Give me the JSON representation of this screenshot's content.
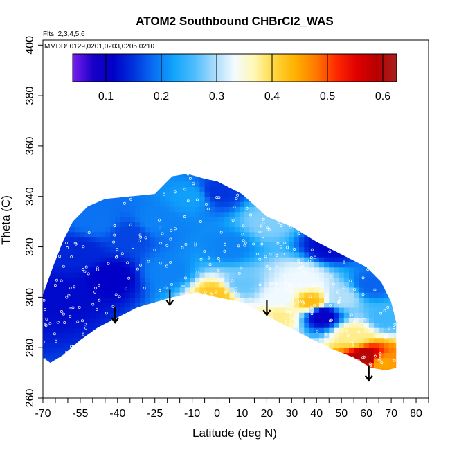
{
  "chart_data": {
    "type": "heatmap",
    "title": "ATOM2 Southbound CHBrCl2_WAS",
    "annotations": {
      "flights": "Flts: 2,3,4,5,6",
      "dates": "MMDD: 0129,0201,0203,0205,0210"
    },
    "xlabel": "Latitude (deg N)",
    "ylabel": "Theta (C)",
    "xlim": [
      -70,
      85
    ],
    "ylim": [
      260,
      402
    ],
    "x_tick_labels": [
      "-70",
      "-55",
      "-40",
      "-25",
      "-10",
      "0",
      "10",
      "20",
      "30",
      "40",
      "50",
      "60",
      "70",
      "80"
    ],
    "x_tick_values": [
      -70,
      -55,
      -40,
      -25,
      -10,
      0,
      10,
      20,
      30,
      40,
      50,
      60,
      70,
      80
    ],
    "x_minor_ticks": [
      -65,
      -60,
      -50,
      -45,
      -35,
      -30,
      -20,
      -15,
      -5,
      5,
      15,
      25,
      35,
      45,
      55,
      65,
      75,
      85
    ],
    "y_tick_labels": [
      "260",
      "280",
      "300",
      "320",
      "340",
      "360",
      "380",
      "400"
    ],
    "y_tick_values": [
      260,
      280,
      300,
      320,
      340,
      360,
      380,
      400
    ],
    "colorbar": {
      "range": [
        0.04,
        0.625
      ],
      "tick_labels": [
        "0.1",
        "0.2",
        "0.3",
        "0.4",
        "0.5",
        "0.6"
      ],
      "tick_values": [
        0.1,
        0.2,
        0.3,
        0.4,
        0.5,
        0.6
      ],
      "colors": [
        "#7a1ff0",
        "#1a00c8",
        "#0000c8",
        "#0033dd",
        "#0a6ef2",
        "#11a5fc",
        "#4cbcfd",
        "#a8dcfb",
        "#f4fbff",
        "#fff7b0",
        "#ffd53a",
        "#ffb000",
        "#ff7a00",
        "#ff2a00",
        "#e00000",
        "#b80000",
        "#a82020"
      ]
    },
    "envelope_upper": [
      [
        -70,
        301
      ],
      [
        -66,
        312
      ],
      [
        -62,
        322
      ],
      [
        -58,
        330
      ],
      [
        -52,
        336
      ],
      [
        -45,
        339
      ],
      [
        -35,
        340
      ],
      [
        -25,
        341
      ],
      [
        -18,
        348
      ],
      [
        -12,
        349
      ],
      [
        -5,
        347
      ],
      [
        0,
        346
      ],
      [
        10,
        341
      ],
      [
        20,
        332
      ],
      [
        30,
        328
      ],
      [
        40,
        322
      ],
      [
        50,
        317
      ],
      [
        60,
        312
      ],
      [
        66,
        306
      ],
      [
        70,
        298
      ],
      [
        72,
        290
      ],
      [
        72,
        272
      ]
    ],
    "envelope_lower": [
      [
        72,
        272
      ],
      [
        68,
        271
      ],
      [
        62,
        272
      ],
      [
        55,
        276
      ],
      [
        45,
        280
      ],
      [
        35,
        285
      ],
      [
        25,
        290
      ],
      [
        18,
        294
      ],
      [
        10,
        298
      ],
      [
        0,
        300
      ],
      [
        -8,
        302
      ],
      [
        -18,
        300
      ],
      [
        -25,
        298
      ],
      [
        -32,
        296
      ],
      [
        -40,
        292
      ],
      [
        -48,
        288
      ],
      [
        -55,
        283
      ],
      [
        -62,
        277
      ],
      [
        -67,
        274
      ],
      [
        -70,
        276
      ]
    ],
    "field_anchors": [
      {
        "lat": -62,
        "theta": 300,
        "value": 0.12
      },
      {
        "lat": -55,
        "theta": 318,
        "value": 0.14
      },
      {
        "lat": -42,
        "theta": 308,
        "value": 0.11
      },
      {
        "lat": -35,
        "theta": 325,
        "value": 0.16
      },
      {
        "lat": -48,
        "theta": 330,
        "value": 0.19
      },
      {
        "lat": -25,
        "theta": 330,
        "value": 0.2
      },
      {
        "lat": -20,
        "theta": 310,
        "value": 0.2
      },
      {
        "lat": -10,
        "theta": 340,
        "value": 0.22
      },
      {
        "lat": 0,
        "theta": 342,
        "value": 0.15
      },
      {
        "lat": 5,
        "theta": 320,
        "value": 0.2
      },
      {
        "lat": 10,
        "theta": 305,
        "value": 0.27
      },
      {
        "lat": 0,
        "theta": 301,
        "value": 0.42
      },
      {
        "lat": 20,
        "theta": 330,
        "value": 0.28
      },
      {
        "lat": 25,
        "theta": 300,
        "value": 0.33
      },
      {
        "lat": 25,
        "theta": 292,
        "value": 0.38
      },
      {
        "lat": 35,
        "theta": 308,
        "value": 0.33
      },
      {
        "lat": 38,
        "theta": 298,
        "value": 0.43
      },
      {
        "lat": 42,
        "theta": 293,
        "value": 0.1
      },
      {
        "lat": 45,
        "theta": 320,
        "value": 0.12
      },
      {
        "lat": 50,
        "theta": 300,
        "value": 0.3
      },
      {
        "lat": 55,
        "theta": 285,
        "value": 0.38
      },
      {
        "lat": 60,
        "theta": 276,
        "value": 0.6
      },
      {
        "lat": 66,
        "theta": 274,
        "value": 0.45
      },
      {
        "lat": 68,
        "theta": 292,
        "value": 0.25
      },
      {
        "lat": 62,
        "theta": 305,
        "value": 0.18
      }
    ],
    "arrows": [
      {
        "lat": -41,
        "theta": 296
      },
      {
        "lat": -19,
        "theta": 303
      },
      {
        "lat": 20,
        "theta": 299
      },
      {
        "lat": 61,
        "theta": 273
      }
    ]
  }
}
